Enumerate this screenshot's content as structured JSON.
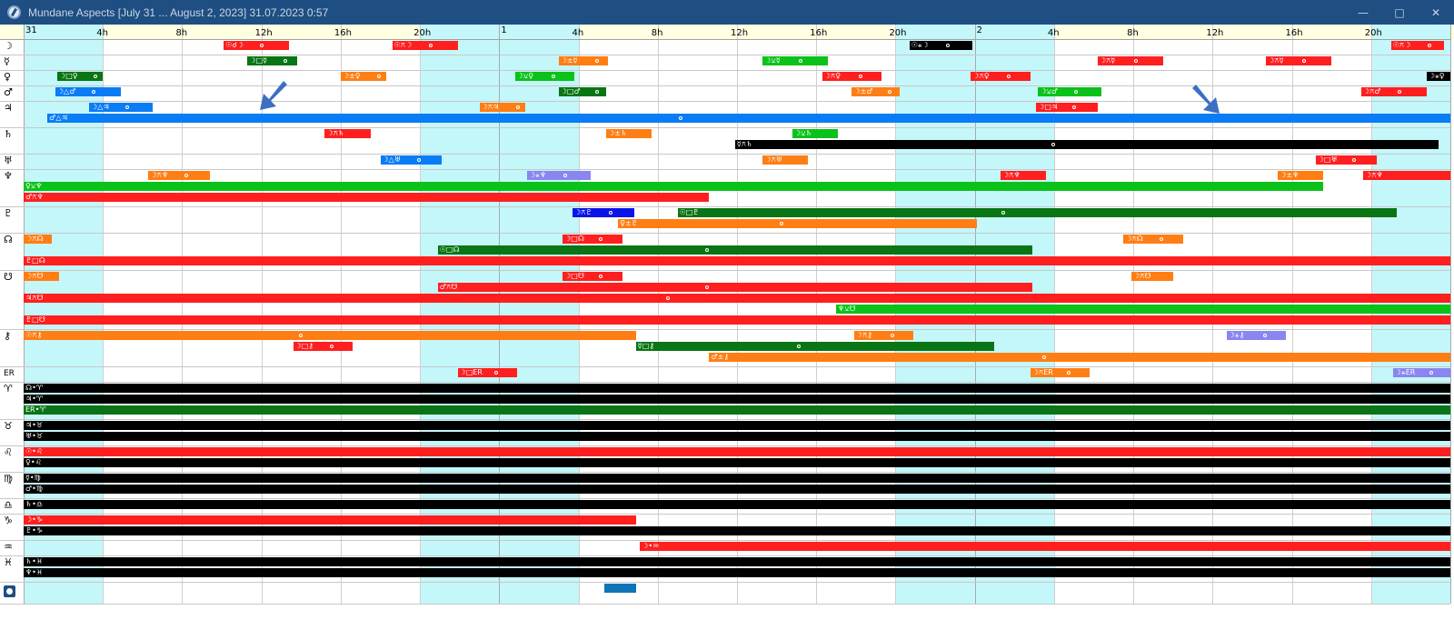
{
  "window": {
    "title": "Mundane Aspects [July 31 ... August 2, 2023]  31.07.2023  0:57",
    "minimize_icon": "minimize-icon",
    "maximize_icon": "maximize-icon",
    "close_icon": "close-icon"
  },
  "timeline": {
    "days": [
      {
        "label": "31",
        "hour": 0
      },
      {
        "label": "1",
        "hour": 24
      },
      {
        "label": "2",
        "hour": 48
      }
    ],
    "ticks": [
      {
        "label": "4h",
        "hour": 4
      },
      {
        "label": "8h",
        "hour": 8
      },
      {
        "label": "12h",
        "hour": 12
      },
      {
        "label": "16h",
        "hour": 16
      },
      {
        "label": "20h",
        "hour": 20
      },
      {
        "label": "4h",
        "hour": 28
      },
      {
        "label": "8h",
        "hour": 32
      },
      {
        "label": "12h",
        "hour": 36
      },
      {
        "label": "16h",
        "hour": 40
      },
      {
        "label": "20h",
        "hour": 44
      },
      {
        "label": "4h",
        "hour": 52
      },
      {
        "label": "8h",
        "hour": 56
      },
      {
        "label": "12h",
        "hour": 60
      },
      {
        "label": "16h",
        "hour": 64
      },
      {
        "label": "20h",
        "hour": 68
      }
    ],
    "night_bands": [
      [
        0,
        4
      ],
      [
        20,
        28
      ],
      [
        44,
        52
      ],
      [
        68,
        72
      ]
    ],
    "colors": {
      "night": "#c4f7fa",
      "day_header": "#ffffe1",
      "night_header": "#c4f7fa",
      "red": "#ff1f1f",
      "orange": "#ff7e14",
      "green": "#0ac21a",
      "darkgreen": "#0a7514",
      "blue": "#0a7cf5",
      "navy": "#0a14e8",
      "lavender": "#8a86f0",
      "black": "#000000",
      "steel": "#1074b8"
    }
  },
  "rows": [
    {
      "symbol": "☽",
      "h": 17
    },
    {
      "symbol": "☿",
      "h": 17
    },
    {
      "symbol": "♀",
      "h": 17
    },
    {
      "symbol": "♂",
      "h": 17
    },
    {
      "symbol": "♃",
      "h": 29
    },
    {
      "symbol": "♄",
      "h": 29
    },
    {
      "symbol": "♅",
      "h": 17
    },
    {
      "symbol": "♆",
      "h": 41
    },
    {
      "symbol": "♇",
      "h": 29
    },
    {
      "symbol": "☊",
      "h": 41
    },
    {
      "symbol": "☋",
      "h": 65
    },
    {
      "symbol": "⚷",
      "h": 41
    },
    {
      "symbol": "ER",
      "h": 17
    },
    {
      "symbol": "♈",
      "h": 41
    },
    {
      "symbol": "♉",
      "h": 29
    },
    {
      "symbol": "♌",
      "h": 29
    },
    {
      "symbol": "♍",
      "h": 29
    },
    {
      "symbol": "♎",
      "h": 17
    },
    {
      "symbol": "♑",
      "h": 29
    },
    {
      "symbol": "♒",
      "h": 17
    },
    {
      "symbol": "♓",
      "h": 29
    },
    {
      "symbol": "moon-phase-icon",
      "h": 24
    }
  ],
  "bars": [
    {
      "row": 0,
      "lane": 0,
      "start": 10.1,
      "end": 13.4,
      "color": "red",
      "label": "☉☌☽",
      "dot": true
    },
    {
      "row": 0,
      "lane": 0,
      "start": 18.6,
      "end": 21.9,
      "color": "red",
      "label": "☉⚻☽",
      "dot": true
    },
    {
      "row": 0,
      "lane": 0,
      "start": 44.7,
      "end": 47.9,
      "color": "black",
      "label": "☉⚹☽",
      "dot": true
    },
    {
      "row": 0,
      "lane": 0,
      "start": 69.0,
      "end": 71.7,
      "color": "red",
      "label": "☉⚻☽",
      "dot": true
    },
    {
      "row": 1,
      "lane": 0,
      "start": 11.3,
      "end": 13.8,
      "color": "darkgreen",
      "label": "☽□☿",
      "dot": true
    },
    {
      "row": 1,
      "lane": 0,
      "start": 27.0,
      "end": 29.5,
      "color": "orange",
      "label": "☽±☿",
      "dot": true
    },
    {
      "row": 1,
      "lane": 0,
      "start": 37.3,
      "end": 40.6,
      "color": "green",
      "label": "☽⚺☿",
      "dot": true
    },
    {
      "row": 1,
      "lane": 0,
      "start": 54.2,
      "end": 57.5,
      "color": "red",
      "label": "☽⚻☿",
      "dot": true
    },
    {
      "row": 1,
      "lane": 0,
      "start": 62.7,
      "end": 66.0,
      "color": "red",
      "label": "☽⚻☿",
      "dot": true
    },
    {
      "row": 2,
      "lane": 0,
      "start": 1.7,
      "end": 4.0,
      "color": "darkgreen",
      "label": "☽□♀",
      "dot": true
    },
    {
      "row": 2,
      "lane": 0,
      "start": 16.0,
      "end": 18.3,
      "color": "orange",
      "label": "☽±♀",
      "dot": true
    },
    {
      "row": 2,
      "lane": 0,
      "start": 24.8,
      "end": 27.8,
      "color": "green",
      "label": "☽⚺♀",
      "dot": true
    },
    {
      "row": 2,
      "lane": 0,
      "start": 40.3,
      "end": 43.3,
      "color": "red",
      "label": "☽⚻♀",
      "dot": true
    },
    {
      "row": 2,
      "lane": 0,
      "start": 47.8,
      "end": 50.8,
      "color": "red",
      "label": "☽⚻♀",
      "dot": true
    },
    {
      "row": 2,
      "lane": 0,
      "start": 70.8,
      "end": 72.0,
      "color": "black",
      "label": "☽⚹♀",
      "dot": false
    },
    {
      "row": 3,
      "lane": 0,
      "start": 1.6,
      "end": 4.9,
      "color": "blue",
      "label": "☽△♂",
      "dot": true
    },
    {
      "row": 3,
      "lane": 0,
      "start": 27.0,
      "end": 29.4,
      "color": "darkgreen",
      "label": "☽□♂",
      "dot": true
    },
    {
      "row": 3,
      "lane": 0,
      "start": 41.8,
      "end": 44.2,
      "color": "orange",
      "label": "☽±♂",
      "dot": true
    },
    {
      "row": 3,
      "lane": 0,
      "start": 51.2,
      "end": 54.4,
      "color": "green",
      "label": "☽⚺♂",
      "dot": true
    },
    {
      "row": 3,
      "lane": 0,
      "start": 67.5,
      "end": 70.8,
      "color": "red",
      "label": "☽⚻♂",
      "dot": true
    },
    {
      "row": 4,
      "lane": 0,
      "start": 3.3,
      "end": 6.5,
      "color": "blue",
      "label": "☽△♃",
      "dot": true
    },
    {
      "row": 4,
      "lane": 0,
      "start": 23.0,
      "end": 25.3,
      "color": "orange",
      "label": "☽⚻♃",
      "dot": true
    },
    {
      "row": 4,
      "lane": 0,
      "start": 51.1,
      "end": 54.2,
      "color": "red",
      "label": "☽□♃",
      "dot": true
    },
    {
      "row": 4,
      "lane": 1,
      "start": 1.2,
      "end": 72.0,
      "color": "blue",
      "label": "♂△♃",
      "dot": true
    },
    {
      "row": 5,
      "lane": 0,
      "start": 15.2,
      "end": 17.5,
      "color": "red",
      "label": "☽⚻♄",
      "dot": false
    },
    {
      "row": 5,
      "lane": 0,
      "start": 29.4,
      "end": 31.7,
      "color": "orange",
      "label": "☽±♄",
      "dot": false
    },
    {
      "row": 5,
      "lane": 0,
      "start": 38.8,
      "end": 41.1,
      "color": "green",
      "label": "☽⚺♄",
      "dot": false
    },
    {
      "row": 5,
      "lane": 1,
      "start": 35.9,
      "end": 71.4,
      "color": "black",
      "label": "☿⚻♄",
      "dot": true
    },
    {
      "row": 6,
      "lane": 0,
      "start": 18.0,
      "end": 21.1,
      "color": "blue",
      "label": "☽△♅",
      "dot": true
    },
    {
      "row": 6,
      "lane": 0,
      "start": 37.3,
      "end": 39.6,
      "color": "orange",
      "label": "☽⚻♅",
      "dot": false
    },
    {
      "row": 6,
      "lane": 0,
      "start": 65.2,
      "end": 68.3,
      "color": "red",
      "label": "☽□♅",
      "dot": true
    },
    {
      "row": 7,
      "lane": 0,
      "start": 6.3,
      "end": 9.4,
      "color": "orange",
      "label": "☽⚻♆",
      "dot": true
    },
    {
      "row": 7,
      "lane": 0,
      "start": 25.4,
      "end": 28.6,
      "color": "lavender",
      "label": "☽⚹♆",
      "dot": true
    },
    {
      "row": 7,
      "lane": 0,
      "start": 49.3,
      "end": 51.6,
      "color": "red",
      "label": "☽⚻♆",
      "dot": false
    },
    {
      "row": 7,
      "lane": 0,
      "start": 63.3,
      "end": 65.6,
      "color": "orange",
      "label": "☽±♆",
      "dot": false
    },
    {
      "row": 7,
      "lane": 0,
      "start": 67.6,
      "end": 72.0,
      "color": "red",
      "label": "☽⚻♆",
      "dot": false
    },
    {
      "row": 7,
      "lane": 1,
      "start": 0.0,
      "end": 65.6,
      "color": "green",
      "label": "♀⚺♆",
      "dot": false
    },
    {
      "row": 7,
      "lane": 2,
      "start": 0.0,
      "end": 34.6,
      "color": "red",
      "label": "♂⚻♆",
      "dot": false
    },
    {
      "row": 8,
      "lane": 0,
      "start": 27.7,
      "end": 30.8,
      "color": "navy",
      "label": "☽⚻♇",
      "dot": true
    },
    {
      "row": 8,
      "lane": 0,
      "start": 33.0,
      "end": 69.3,
      "color": "darkgreen",
      "label": "☉□♇",
      "dot": true
    },
    {
      "row": 8,
      "lane": 1,
      "start": 30.0,
      "end": 48.1,
      "color": "orange",
      "label": "♀±♇",
      "dot": true
    },
    {
      "row": 9,
      "lane": 0,
      "start": 0.0,
      "end": 1.4,
      "color": "orange",
      "label": "☽⚻☊",
      "dot": false
    },
    {
      "row": 9,
      "lane": 0,
      "start": 27.2,
      "end": 30.2,
      "color": "red",
      "label": "☽□☊",
      "dot": true
    },
    {
      "row": 9,
      "lane": 0,
      "start": 55.5,
      "end": 58.5,
      "color": "orange",
      "label": "☽⚻☊",
      "dot": true
    },
    {
      "row": 9,
      "lane": 1,
      "start": 20.9,
      "end": 50.9,
      "color": "darkgreen",
      "label": "☉□☊",
      "dot": true
    },
    {
      "row": 9,
      "lane": 2,
      "start": 0.0,
      "end": 72.0,
      "color": "red",
      "label": "♇□☊",
      "dot": false
    },
    {
      "row": 10,
      "lane": 0,
      "start": 0.0,
      "end": 1.8,
      "color": "orange",
      "label": "☽⚻☋",
      "dot": false
    },
    {
      "row": 10,
      "lane": 0,
      "start": 27.2,
      "end": 30.2,
      "color": "red",
      "label": "☽□☋",
      "dot": true
    },
    {
      "row": 10,
      "lane": 0,
      "start": 55.9,
      "end": 58.0,
      "color": "orange",
      "label": "☽⚻☋",
      "dot": false
    },
    {
      "row": 10,
      "lane": 1,
      "start": 20.9,
      "end": 50.9,
      "color": "red",
      "label": "♂⚻☋",
      "dot": true
    },
    {
      "row": 10,
      "lane": 2,
      "start": 0.0,
      "end": 72.0,
      "color": "red",
      "label": "♃⚻☋",
      "dot": true
    },
    {
      "row": 10,
      "lane": 3,
      "start": 41.0,
      "end": 72.0,
      "color": "green",
      "label": "♆⚺☋",
      "dot": false
    },
    {
      "row": 10,
      "lane": 4,
      "start": 0.0,
      "end": 72.0,
      "color": "red",
      "label": "♇□☋",
      "dot": false
    },
    {
      "row": 11,
      "lane": 0,
      "start": 0.0,
      "end": 30.9,
      "color": "orange",
      "label": "☉⚻⚷",
      "dot": true
    },
    {
      "row": 11,
      "lane": 0,
      "start": 41.9,
      "end": 44.9,
      "color": "orange",
      "label": "☽⚻⚷",
      "dot": true
    },
    {
      "row": 11,
      "lane": 0,
      "start": 60.7,
      "end": 63.7,
      "color": "lavender",
      "label": "☽⚹⚷",
      "dot": true
    },
    {
      "row": 11,
      "lane": 1,
      "start": 13.6,
      "end": 16.6,
      "color": "red",
      "label": "☽□⚷",
      "dot": true
    },
    {
      "row": 11,
      "lane": 1,
      "start": 30.9,
      "end": 49.0,
      "color": "darkgreen",
      "label": "☿□⚷",
      "dot": true
    },
    {
      "row": 11,
      "lane": 2,
      "start": 34.6,
      "end": 72.0,
      "color": "orange",
      "label": "♂±⚷",
      "dot": true
    },
    {
      "row": 12,
      "lane": 0,
      "start": 21.9,
      "end": 24.9,
      "color": "red",
      "label": "☽□ER",
      "dot": true
    },
    {
      "row": 12,
      "lane": 0,
      "start": 50.8,
      "end": 53.8,
      "color": "orange",
      "label": "☽⚻ER",
      "dot": true
    },
    {
      "row": 12,
      "lane": 0,
      "start": 69.1,
      "end": 72.0,
      "color": "lavender",
      "label": "☽⚹ER",
      "dot": true
    },
    {
      "row": 13,
      "lane": 0,
      "start": 0.0,
      "end": 72.0,
      "color": "black",
      "label": "☊•♈",
      "dot": false
    },
    {
      "row": 13,
      "lane": 1,
      "start": 0.0,
      "end": 72.0,
      "color": "black",
      "label": "♃•♈",
      "dot": false
    },
    {
      "row": 13,
      "lane": 2,
      "start": 0.0,
      "end": 72.0,
      "color": "darkgreen",
      "label": "ER•♈",
      "dot": false
    },
    {
      "row": 14,
      "lane": 0,
      "start": 0.0,
      "end": 72.0,
      "color": "black",
      "label": "♃•♉",
      "dot": false
    },
    {
      "row": 14,
      "lane": 1,
      "start": 0.0,
      "end": 72.0,
      "color": "black",
      "label": "♅•♉",
      "dot": false
    },
    {
      "row": 15,
      "lane": 0,
      "start": 0.0,
      "end": 72.0,
      "color": "red",
      "label": "☉•♌",
      "dot": false
    },
    {
      "row": 15,
      "lane": 1,
      "start": 0.0,
      "end": 72.0,
      "color": "black",
      "label": "♀•♌",
      "dot": false
    },
    {
      "row": 16,
      "lane": 0,
      "start": 0.0,
      "end": 72.0,
      "color": "black",
      "label": "☿•♍",
      "dot": false
    },
    {
      "row": 16,
      "lane": 1,
      "start": 0.0,
      "end": 72.0,
      "color": "black",
      "label": "♂•♍",
      "dot": false
    },
    {
      "row": 17,
      "lane": 0,
      "start": 0.0,
      "end": 72.0,
      "color": "black",
      "label": "♄•♎",
      "dot": false
    },
    {
      "row": 18,
      "lane": 0,
      "start": 0.0,
      "end": 30.9,
      "color": "red",
      "label": "☽•♑",
      "dot": false
    },
    {
      "row": 18,
      "lane": 1,
      "start": 0.0,
      "end": 72.0,
      "color": "black",
      "label": "♇•♑",
      "dot": false
    },
    {
      "row": 19,
      "lane": 0,
      "start": 31.1,
      "end": 72.0,
      "color": "red",
      "label": "☽•♒",
      "dot": false
    },
    {
      "row": 20,
      "lane": 0,
      "start": 0.0,
      "end": 72.0,
      "color": "black",
      "label": "♄•♓",
      "dot": false
    },
    {
      "row": 20,
      "lane": 1,
      "start": 0.0,
      "end": 72.0,
      "color": "black",
      "label": "♆•♓",
      "dot": false
    },
    {
      "row": 21,
      "lane": 0,
      "start": 29.3,
      "end": 30.9,
      "color": "steel",
      "label": "",
      "dot": false
    }
  ],
  "arrows": [
    {
      "name": "annotation-arrow-left",
      "icon": "arrow-down-left-icon",
      "color": "#3b6fc2"
    },
    {
      "name": "annotation-arrow-right",
      "icon": "arrow-down-right-icon",
      "color": "#3b6fc2"
    }
  ]
}
